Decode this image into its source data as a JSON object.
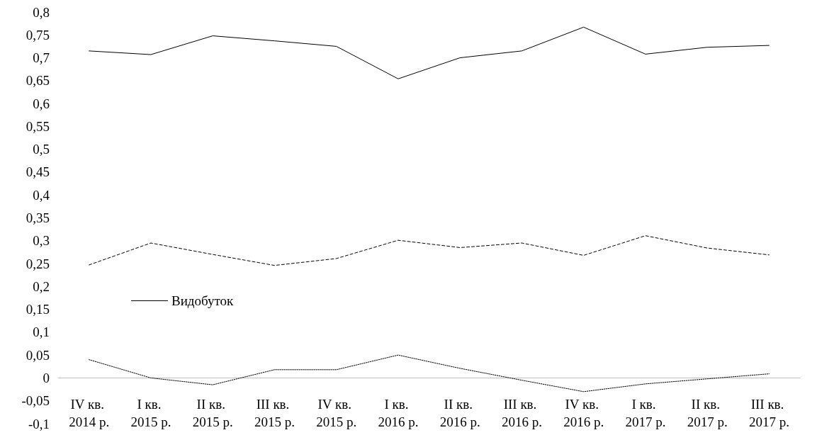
{
  "chart_data": {
    "type": "line",
    "categories": [
      "IV кв. 2014 р.",
      "I кв. 2015 р.",
      "II кв. 2015 р.",
      "III кв. 2015 р.",
      "IV кв. 2015 р.",
      "I кв. 2016 р.",
      "II кв. 2016 р.",
      "III кв. 2016 р.",
      "IV кв. 2016 р.",
      "I кв. 2017 р.",
      "II кв. 2017 р.",
      "III кв. 2017 р."
    ],
    "series": [
      {
        "name": "Видобуток",
        "color": "#000000",
        "line_style": "solid",
        "values": [
          0.715,
          0.707,
          0.748,
          0.737,
          0.725,
          0.654,
          0.7,
          0.715,
          0.767,
          0.708,
          0.723,
          0.727
        ]
      },
      {
        "color": "#000000",
        "line_style": "dashed",
        "values": [
          0.247,
          0.295,
          0.27,
          0.246,
          0.261,
          0.301,
          0.285,
          0.295,
          0.268,
          0.311,
          0.284,
          0.269
        ]
      },
      {
        "color": "#000000",
        "line_style": "dotted",
        "values": [
          0.04,
          0,
          -0.015,
          0.018,
          0.018,
          0.05,
          0.021,
          -0.005,
          -0.03,
          -0.013,
          -0.002,
          0.009
        ]
      }
    ],
    "ylim": [
      -0.1,
      0.8
    ],
    "yticks": [
      {
        "value": -0.1,
        "label": "-0,1"
      },
      {
        "value": -0.05,
        "label": "-0,05"
      },
      {
        "value": 0,
        "label": "0"
      },
      {
        "value": 0.05,
        "label": "0,05"
      },
      {
        "value": 0.1,
        "label": "0,1"
      },
      {
        "value": 0.15,
        "label": "0,15"
      },
      {
        "value": 0.2,
        "label": "0,2"
      },
      {
        "value": 0.25,
        "label": "0,25"
      },
      {
        "value": 0.3,
        "label": "0,3"
      },
      {
        "value": 0.35,
        "label": "0,35"
      },
      {
        "value": 0.4,
        "label": "0,4"
      },
      {
        "value": 0.45,
        "label": "0,45"
      },
      {
        "value": 0.5,
        "label": "0,5"
      },
      {
        "value": 0.55,
        "label": "0,55"
      },
      {
        "value": 0.6,
        "label": "0,6"
      },
      {
        "value": 0.65,
        "label": "0,65"
      },
      {
        "value": 0.7,
        "label": "0,7"
      },
      {
        "value": 0.75,
        "label": "0,75"
      },
      {
        "value": 0.8,
        "label": "0,8"
      }
    ],
    "grid": false,
    "legend": "left",
    "marker": "none"
  }
}
